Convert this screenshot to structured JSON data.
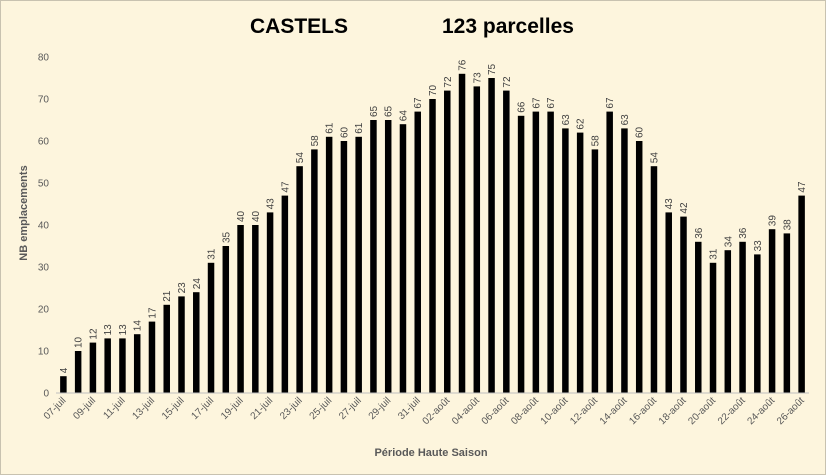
{
  "chart_data": {
    "type": "bar",
    "title_left": "CASTELS",
    "title_right": "123 parcelles",
    "xlabel": "Période Haute Saison",
    "ylabel": "NB emplacements",
    "ylim": [
      0,
      80
    ],
    "yticks": [
      0,
      10,
      20,
      30,
      40,
      50,
      60,
      70,
      80
    ],
    "grid": false,
    "bar_color": "#000000",
    "background": "#fdf5dd",
    "categories": [
      "07-juil",
      "08-juil",
      "09-juil",
      "10-juil",
      "11-juil",
      "12-juil",
      "13-juil",
      "14-juil",
      "15-juil",
      "16-juil",
      "17-juil",
      "18-juil",
      "19-juil",
      "20-juil",
      "21-juil",
      "22-juil",
      "23-juil",
      "24-juil",
      "25-juil",
      "26-juil",
      "27-juil",
      "28-juil",
      "29-juil",
      "30-juil",
      "31-juil",
      "01-août",
      "02-août",
      "03-août",
      "04-août",
      "05-août",
      "06-août",
      "07-août",
      "08-août",
      "09-août",
      "10-août",
      "11-août",
      "12-août",
      "13-août",
      "14-août",
      "15-août",
      "16-août",
      "17-août",
      "18-août",
      "19-août",
      "20-août",
      "21-août",
      "22-août",
      "23-août",
      "24-août",
      "25-août",
      "26-août"
    ],
    "values": [
      4,
      10,
      12,
      13,
      13,
      14,
      17,
      21,
      23,
      24,
      31,
      35,
      40,
      40,
      43,
      47,
      54,
      58,
      61,
      60,
      61,
      65,
      65,
      64,
      67,
      70,
      72,
      76,
      73,
      75,
      72,
      66,
      67,
      67,
      63,
      62,
      58,
      67,
      63,
      60,
      54,
      43,
      42,
      36,
      31,
      34,
      36,
      33,
      39,
      38,
      47
    ],
    "tick_labels_shown": [
      "07-juil",
      "09-juil",
      "11-juil",
      "13-juil",
      "15-juil",
      "17-juil",
      "19-juil",
      "21-juil",
      "23-juil",
      "25-juil",
      "27-juil",
      "29-juil",
      "31-juil",
      "02-août",
      "04-août",
      "06-août",
      "08-août",
      "10-août",
      "12-août",
      "14-août",
      "16-août",
      "18-août",
      "20-août",
      "22-août",
      "24-août",
      "26-août"
    ]
  }
}
